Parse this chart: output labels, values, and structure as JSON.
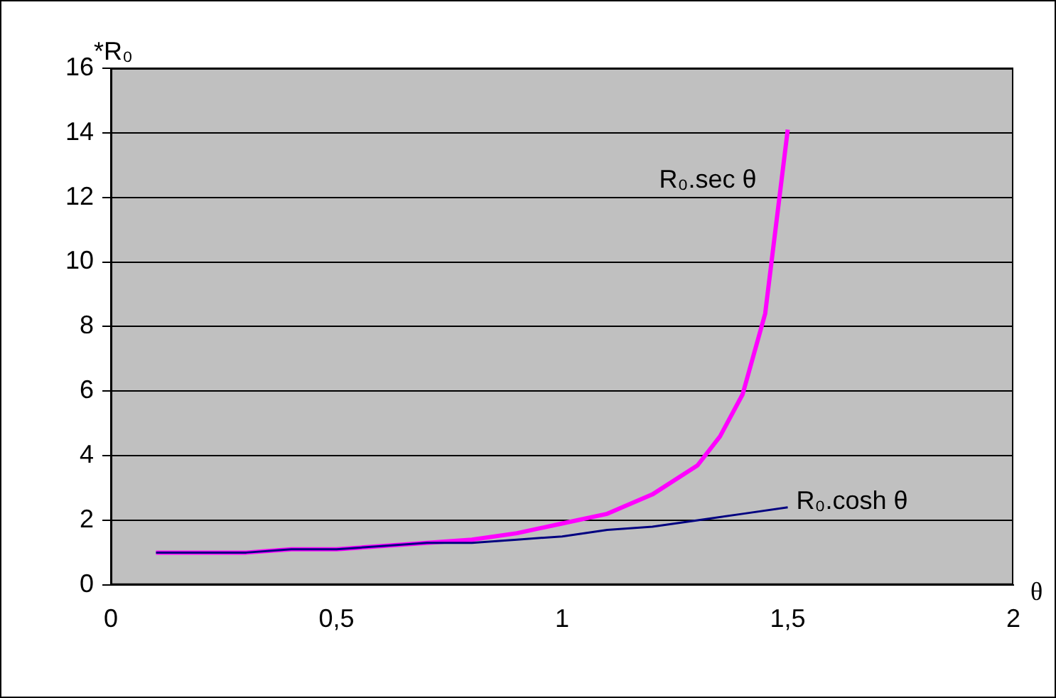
{
  "chart_data": {
    "type": "line",
    "xlabel": "θ",
    "ylabel": "*R₀",
    "xlim": [
      0,
      2
    ],
    "xticks": [
      0,
      {
        "value": 0.5,
        "label": "0,5"
      },
      1,
      {
        "value": 1.5,
        "label": "1,5"
      },
      2
    ],
    "ylim": [
      0,
      16
    ],
    "yticks": [
      0,
      2,
      4,
      6,
      8,
      10,
      12,
      14,
      16
    ],
    "grid": "y",
    "legend": false,
    "marker": "none",
    "line_style": "solid",
    "series": [
      {
        "name": "R₀.sec θ",
        "color": "#ff00ff",
        "x": [
          0.1,
          0.2,
          0.3,
          0.4,
          0.5,
          0.6,
          0.7,
          0.8,
          0.9,
          1.0,
          1.1,
          1.2,
          1.3,
          1.35,
          1.4,
          1.45,
          1.5
        ],
        "values": [
          1.0,
          1.0,
          1.0,
          1.1,
          1.1,
          1.2,
          1.3,
          1.4,
          1.6,
          1.9,
          2.2,
          2.8,
          3.7,
          4.6,
          5.9,
          8.4,
          14.1
        ]
      },
      {
        "name": "R₀.cosh θ",
        "color": "#000080",
        "x": [
          0.1,
          0.2,
          0.3,
          0.4,
          0.5,
          0.6,
          0.7,
          0.8,
          0.9,
          1.0,
          1.1,
          1.2,
          1.3,
          1.4,
          1.5
        ],
        "values": [
          1.0,
          1.0,
          1.0,
          1.1,
          1.1,
          1.2,
          1.3,
          1.3,
          1.4,
          1.5,
          1.7,
          1.8,
          2.0,
          2.2,
          2.4
        ]
      }
    ]
  }
}
